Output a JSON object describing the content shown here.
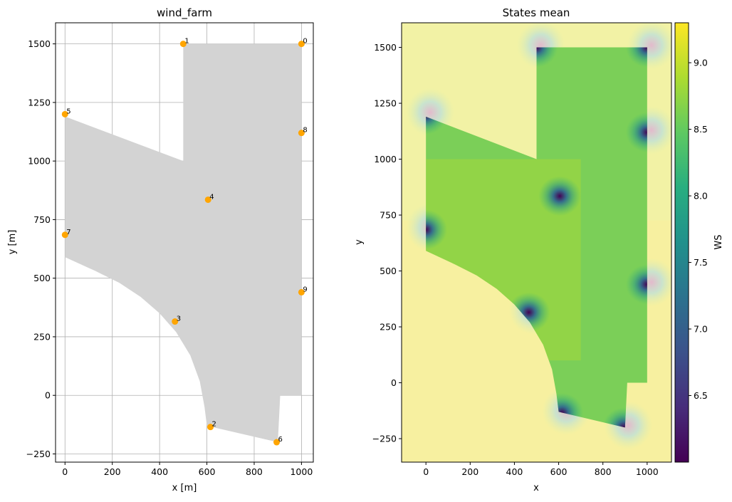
{
  "chart_data": [
    {
      "type": "scatter",
      "title": "wind_farm",
      "xlabel": "x [m]",
      "ylabel": "y [m]",
      "xlim": [
        -40,
        1050
      ],
      "ylim": [
        -285,
        1590
      ],
      "grid": true,
      "xticks": [
        0,
        200,
        400,
        600,
        800,
        1000
      ],
      "yticks": [
        -250,
        0,
        250,
        500,
        750,
        1000,
        1250,
        1500
      ],
      "area_color": "#d3d3d3",
      "marker_color": "#ffa500",
      "boundary": [
        [
          500,
          1500
        ],
        [
          1000,
          1500
        ],
        [
          1000,
          0
        ],
        [
          910,
          0
        ],
        [
          900,
          -200
        ],
        [
          600,
          -130
        ],
        [
          590,
          -50
        ],
        [
          570,
          60
        ],
        [
          530,
          170
        ],
        [
          470,
          270
        ],
        [
          400,
          350
        ],
        [
          320,
          420
        ],
        [
          230,
          480
        ],
        [
          130,
          530
        ],
        [
          0,
          590
        ],
        [
          0,
          1190
        ],
        [
          500,
          1000
        ]
      ],
      "turbines": [
        {
          "label": "0",
          "x": 1000,
          "y": 1500
        },
        {
          "label": "1",
          "x": 500,
          "y": 1500
        },
        {
          "label": "2",
          "x": 615,
          "y": -135
        },
        {
          "label": "3",
          "x": 465,
          "y": 315
        },
        {
          "label": "4",
          "x": 605,
          "y": 835
        },
        {
          "label": "5",
          "x": 0,
          "y": 1200
        },
        {
          "label": "6",
          "x": 895,
          "y": -200
        },
        {
          "label": "7",
          "x": 0,
          "y": 685
        },
        {
          "label": "8",
          "x": 1000,
          "y": 1120
        },
        {
          "label": "9",
          "x": 1000,
          "y": 440
        }
      ]
    },
    {
      "type": "heatmap",
      "title": "States mean",
      "xlabel": "x",
      "ylabel": "y",
      "xlim": [
        -110,
        1110
      ],
      "ylim": [
        -355,
        1610
      ],
      "extent": {
        "x": [
          -110,
          1110
        ],
        "y": [
          -355,
          1610
        ]
      },
      "xticks": [
        0,
        200,
        400,
        600,
        800,
        1000
      ],
      "yticks": [
        -250,
        0,
        250,
        500,
        750,
        1000,
        1250,
        1500
      ],
      "colorbar": {
        "label": "WS",
        "min": 6.0,
        "max": 9.3,
        "ticks": [
          6.5,
          7.0,
          7.5,
          8.0,
          8.5,
          9.0
        ]
      },
      "inside_ws": 8.7,
      "outside_ws": 8.9,
      "wake_min_ws": 6.1
    }
  ]
}
